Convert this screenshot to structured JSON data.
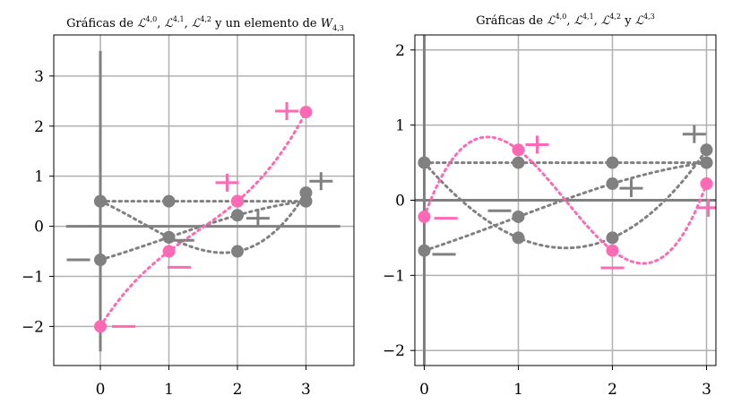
{
  "chart_data": [
    {
      "type": "line",
      "title": "Gráficas de ℒ^{4,0}, ℒ^{4,1}, ℒ^{4,2} y un elemento de W_{4,3}",
      "title_parts": {
        "prefix": "Gráficas de ",
        "l": "ℒ",
        "sup0": "4,0",
        "sup1": "4,1",
        "sup2": "4,2",
        "join": " y un elemento de ",
        "w": "W",
        "wsub": "4,3"
      },
      "xlim": [
        -0.68,
        3.7
      ],
      "ylim": [
        -2.78,
        3.82
      ],
      "xticks": [
        0,
        1,
        2,
        3
      ],
      "yticks": [
        -2,
        -1,
        0,
        1,
        2,
        3
      ],
      "xtick_labels": [
        "0",
        "1",
        "2",
        "3"
      ],
      "ytick_labels": [
        "−2",
        "−1",
        "0",
        "1",
        "2",
        "3"
      ],
      "axis_lines": {
        "h": {
          "y": 0,
          "x": [
            -0.5,
            3.5
          ]
        },
        "v": {
          "x": 0,
          "y": [
            -2.5,
            3.5
          ]
        }
      },
      "grid": true,
      "series": [
        {
          "color": "#808080",
          "points": [
            [
              0,
              0.5
            ],
            [
              1,
              0.5
            ],
            [
              2,
              0.5
            ],
            [
              3,
              0.5
            ]
          ],
          "signs": [
            {
              "x": 1.2,
              "y": -0.28,
              "s": "-"
            },
            {
              "x": 2.3,
              "y": 0.16,
              "s": "+"
            }
          ]
        },
        {
          "color": "#808080",
          "points": [
            [
              0,
              0.5
            ],
            [
              1,
              -0.22
            ],
            [
              2,
              -0.5
            ],
            [
              3,
              0.67
            ]
          ],
          "signs": [
            {
              "x": 3.22,
              "y": 0.9,
              "s": "+"
            }
          ]
        },
        {
          "color": "#808080",
          "points": [
            [
              0,
              -0.67
            ],
            [
              1,
              -0.22
            ],
            [
              2,
              0.22
            ],
            [
              3,
              0.5
            ]
          ],
          "signs": [
            {
              "x": -0.32,
              "y": -0.67,
              "s": "-"
            }
          ]
        },
        {
          "color": "#ff69b4",
          "points": [
            [
              0,
              -2.0
            ],
            [
              1,
              -0.5
            ],
            [
              2,
              0.5
            ],
            [
              3,
              2.28
            ]
          ],
          "signs": [
            {
              "x": 0.34,
              "y": -2.0,
              "s": "-"
            },
            {
              "x": 1.15,
              "y": -0.82,
              "s": "-"
            },
            {
              "x": 1.85,
              "y": 0.87,
              "s": "+"
            },
            {
              "x": 2.72,
              "y": 2.3,
              "s": "+"
            }
          ]
        }
      ]
    },
    {
      "type": "line",
      "title": "Gráficas de ℒ^{4,0}, ℒ^{4,1}, ℒ^{4,2} y ℒ^{4,3}",
      "title_parts": {
        "prefix": "Gráficas de ",
        "l": "ℒ",
        "sup0": "4,0",
        "sup1": "4,1",
        "sup2": "4,2",
        "join": " y ",
        "sup3": "4,3"
      },
      "xlim": [
        -0.1,
        3.1
      ],
      "ylim": [
        -2.2,
        2.2
      ],
      "xticks": [
        0,
        1,
        2,
        3
      ],
      "yticks": [
        -2,
        -1,
        0,
        1,
        2
      ],
      "xtick_labels": [
        "0",
        "1",
        "2",
        "3"
      ],
      "ytick_labels": [
        "−2",
        "−1",
        "0",
        "1",
        "2"
      ],
      "axis_lines": {
        "h": {
          "y": 0,
          "x": [
            -0.1,
            3.1
          ]
        },
        "v": {
          "x": 0,
          "y": [
            -2.2,
            2.2
          ]
        }
      },
      "grid": true,
      "series": [
        {
          "color": "#808080",
          "points": [
            [
              0,
              0.5
            ],
            [
              1,
              0.5
            ],
            [
              2,
              0.5
            ],
            [
              3,
              0.5
            ]
          ],
          "signs": [
            {
              "x": 0.8,
              "y": -0.14,
              "s": "-"
            },
            {
              "x": 2.2,
              "y": 0.16,
              "s": "+"
            }
          ]
        },
        {
          "color": "#808080",
          "points": [
            [
              0,
              0.5
            ],
            [
              1,
              -0.5
            ],
            [
              2,
              -0.5
            ],
            [
              3,
              0.67
            ]
          ],
          "signs": [
            {
              "x": 2.87,
              "y": 0.88,
              "s": "+"
            }
          ]
        },
        {
          "color": "#808080",
          "points": [
            [
              0,
              -0.67
            ],
            [
              1,
              -0.22
            ],
            [
              2,
              0.22
            ],
            [
              3,
              0.5
            ]
          ],
          "signs": [
            {
              "x": 0.21,
              "y": -0.72,
              "s": "-"
            }
          ]
        },
        {
          "color": "#ff69b4",
          "points": [
            [
              0,
              -0.22
            ],
            [
              1,
              0.67
            ],
            [
              2,
              -0.67
            ],
            [
              3,
              0.22
            ]
          ],
          "signs": [
            {
              "x": 0.23,
              "y": -0.24,
              "s": "-"
            },
            {
              "x": 1.2,
              "y": 0.74,
              "s": "+"
            },
            {
              "x": 2.0,
              "y": -0.9,
              "s": "-"
            },
            {
              "x": 3.02,
              "y": -0.1,
              "s": "+"
            }
          ]
        }
      ]
    }
  ]
}
